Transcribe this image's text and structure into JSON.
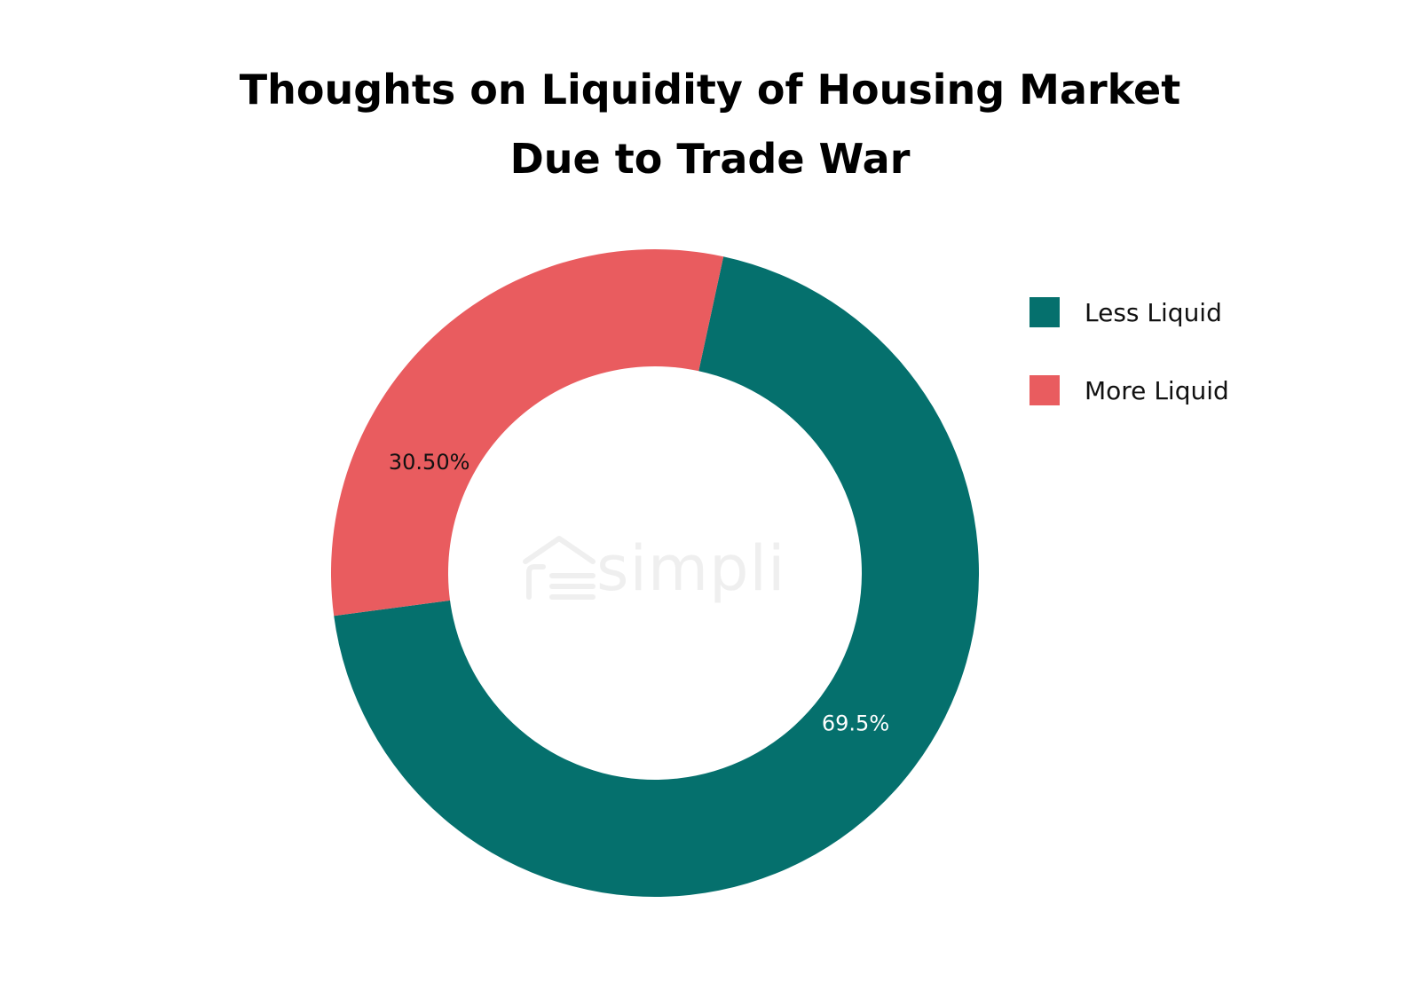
{
  "chart_data": {
    "type": "pie",
    "title_lines": [
      "Thoughts on Liquidity of Housing Market",
      "Due to Trade War"
    ],
    "donut": true,
    "categories": [
      "Less Liquid",
      "More Liquid"
    ],
    "values": [
      69.5,
      30.5
    ],
    "labels": [
      "69.5%",
      "30.50%"
    ],
    "colors": [
      "#05706d",
      "#e95c5f"
    ],
    "label_colors": [
      "#ffffff",
      "#111111"
    ],
    "legend_position": "right"
  },
  "legend": {
    "items": [
      {
        "label": "Less Liquid",
        "color": "#05706d"
      },
      {
        "label": "More Liquid",
        "color": "#e95c5f"
      }
    ]
  },
  "watermark": {
    "text": "simpli",
    "icon": "house-logo-icon"
  }
}
